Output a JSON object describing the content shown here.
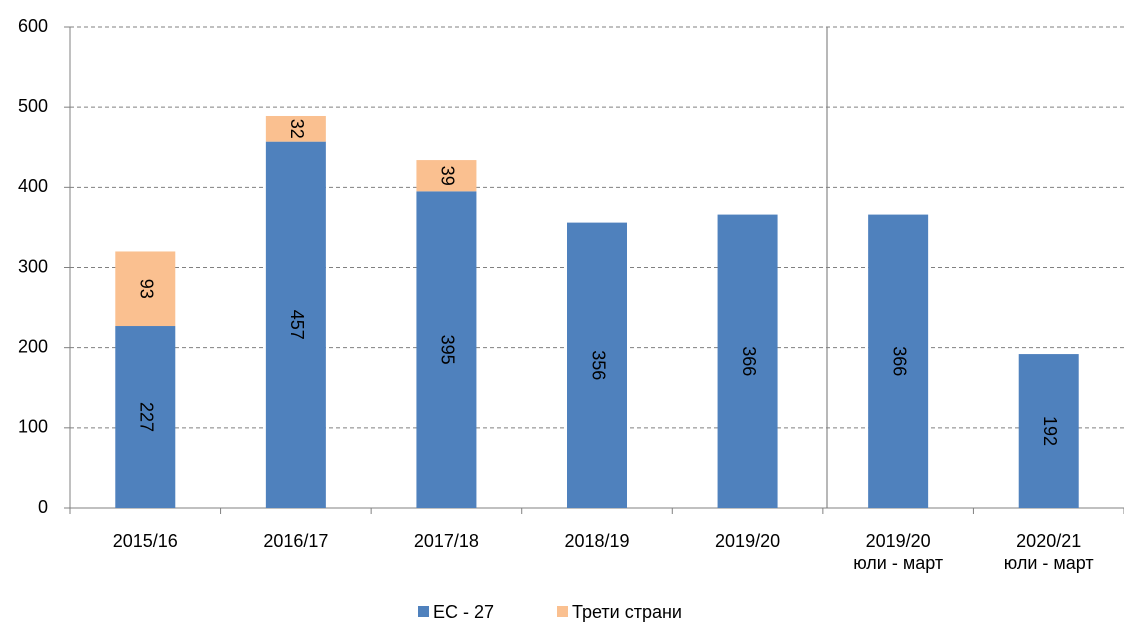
{
  "chart_data": {
    "type": "stacked-bar",
    "categories": [
      [
        "2015/16"
      ],
      [
        "2016/17"
      ],
      [
        "2017/18"
      ],
      [
        "2018/19"
      ],
      [
        "2019/20"
      ],
      [
        "2019/20",
        "юли - март"
      ],
      [
        "2020/21",
        "юли - март"
      ]
    ],
    "series": [
      {
        "name": "ЕС - 27",
        "color": "#4f81bd",
        "values": [
          227,
          457,
          395,
          356,
          366,
          366,
          192
        ]
      },
      {
        "name": "Трети страни",
        "color": "#fac090",
        "values": [
          93,
          32,
          39,
          null,
          null,
          null,
          null
        ]
      }
    ],
    "ylim": [
      0,
      600
    ],
    "yticks": [
      0,
      100,
      200,
      300,
      400,
      500,
      600
    ],
    "grid": true,
    "legend": "bottom"
  }
}
